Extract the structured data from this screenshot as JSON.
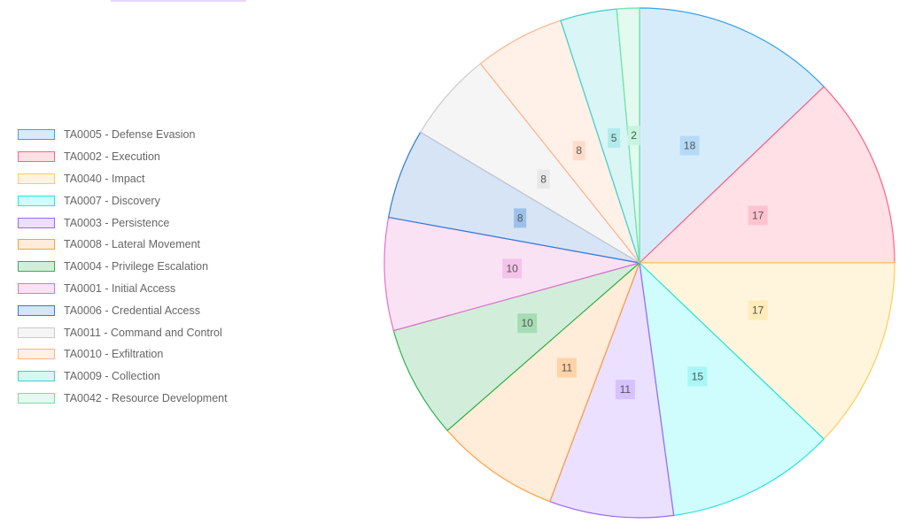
{
  "chart_data": {
    "type": "pie",
    "categories": [
      "TA0005 - Defense Evasion",
      "TA0002 - Execution",
      "TA0040 - Impact",
      "TA0007 - Discovery",
      "TA0003 - Persistence",
      "TA0008 - Lateral Movement",
      "TA0004 - Privilege Escalation",
      "TA0001 - Initial Access",
      "TA0006 - Credential Access",
      "TA0011 - Command and Control",
      "TA0010 - Exfiltration",
      "TA0009 - Collection",
      "TA0042 - Resource Development"
    ],
    "values": [
      18,
      17,
      17,
      15,
      11,
      11,
      10,
      10,
      8,
      8,
      8,
      5,
      2
    ],
    "colors": [
      {
        "border": "#36a2eb",
        "fill": "#d7ecfb"
      },
      {
        "border": "#ff6384",
        "fill": "#ffe0e6"
      },
      {
        "border": "#ffcd56",
        "fill": "#fff5dd"
      },
      {
        "border": "#22e5e5",
        "fill": "#cffcfc"
      },
      {
        "border": "#9966ff",
        "fill": "#ebe0ff"
      },
      {
        "border": "#ff9f40",
        "fill": "#ffecd9"
      },
      {
        "border": "#2db34f",
        "fill": "#d2eeda"
      },
      {
        "border": "#e56fcf",
        "fill": "#fae2f5"
      },
      {
        "border": "#2f7bd6",
        "fill": "#d6e4f5"
      },
      {
        "border": "#c9cbcf",
        "fill": "#f5f5f5"
      },
      {
        "border": "#ffb38a",
        "fill": "#fff0e8"
      },
      {
        "border": "#3fcfcf",
        "fill": "#d9f5f5"
      },
      {
        "border": "#6ee3a3",
        "fill": "#e2faef"
      }
    ],
    "label_colors": [
      {
        "bg": "#b5daf7",
        "fg": "#555555"
      },
      {
        "bg": "#ffc3cf",
        "fg": "#555555"
      },
      {
        "bg": "#ffebb8",
        "fg": "#555555"
      },
      {
        "bg": "#a7f7f7",
        "fg": "#555555"
      },
      {
        "bg": "#d6c2ff",
        "fg": "#555555"
      },
      {
        "bg": "#ffd3a8",
        "fg": "#555555"
      },
      {
        "bg": "#a6dcb4",
        "fg": "#555555"
      },
      {
        "bg": "#f4c3ea",
        "fg": "#555555"
      },
      {
        "bg": "#9cc1ea",
        "fg": "#555555"
      },
      {
        "bg": "#e8e8e8",
        "fg": "#555555"
      },
      {
        "bg": "#ffdcc9",
        "fg": "#555555"
      },
      {
        "bg": "#b0ecec",
        "fg": "#555555"
      },
      {
        "bg": "#c8f5dd",
        "fg": "#555555"
      }
    ],
    "legend_position": "left",
    "top_bar_color": "#e7d8fb",
    "title": ""
  }
}
